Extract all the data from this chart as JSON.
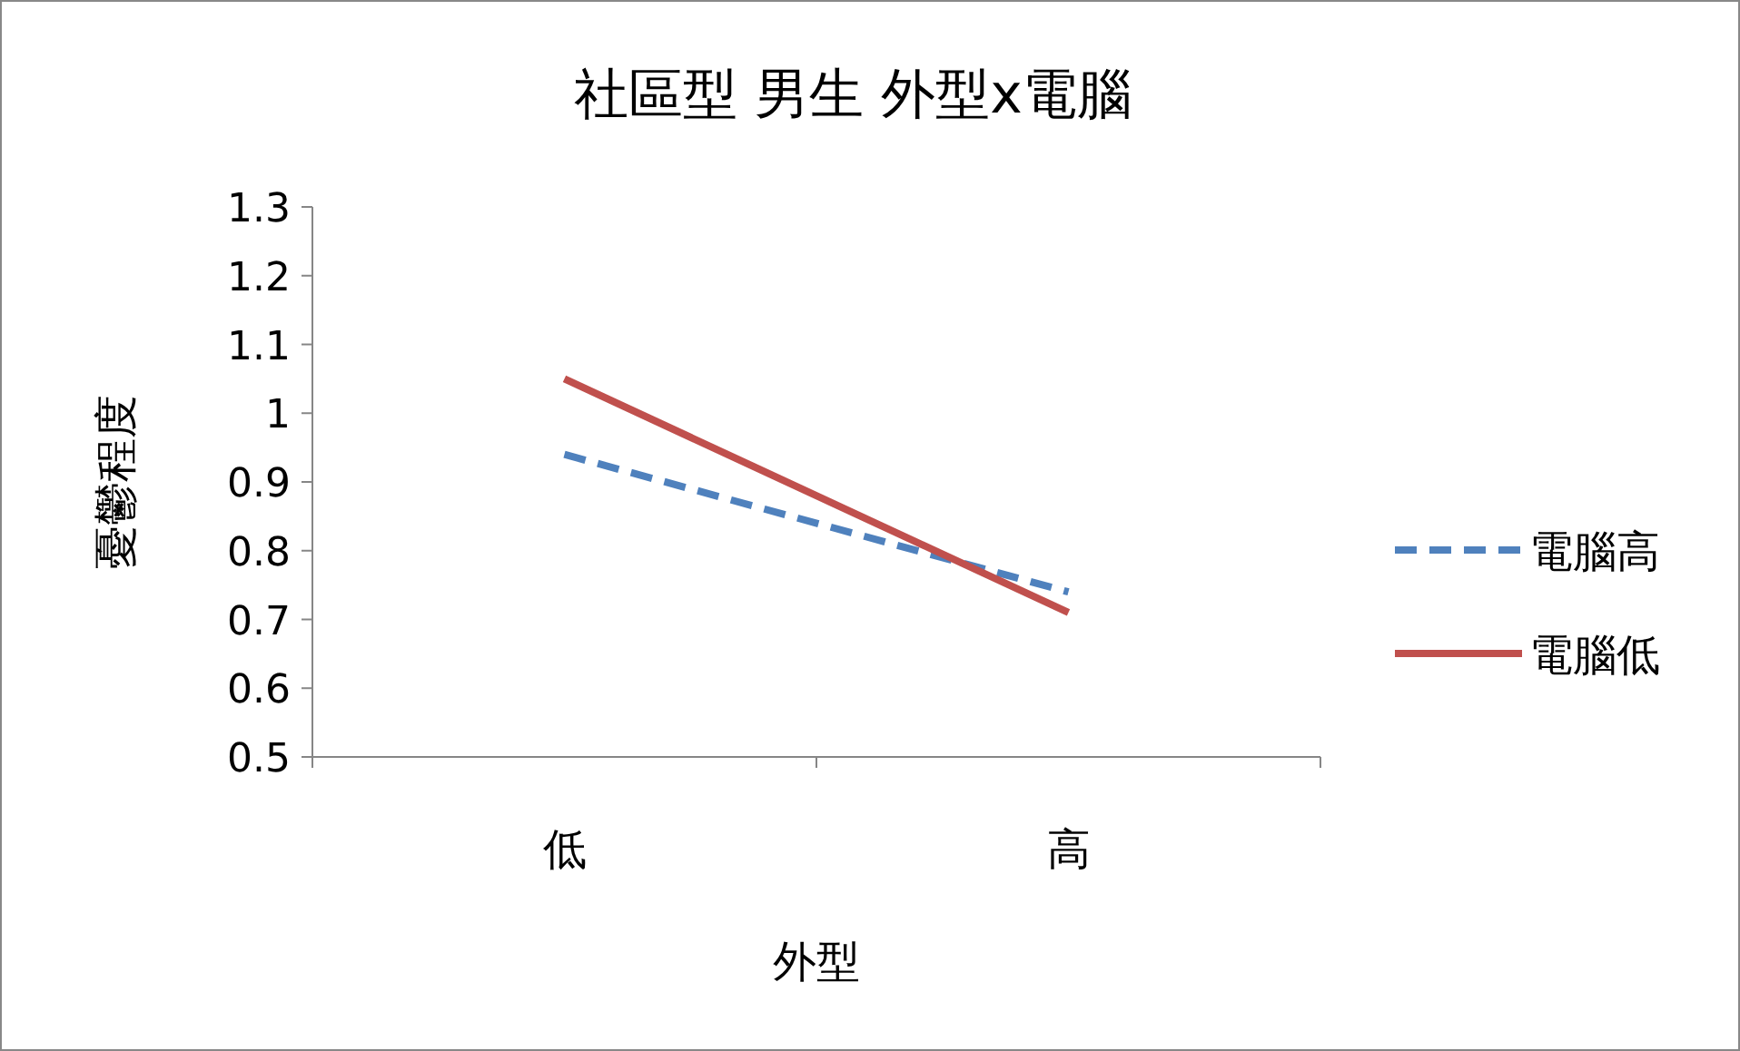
{
  "chart_data": {
    "type": "line",
    "title": "社區型 男生 外型x電腦",
    "xlabel": "外型",
    "ylabel": "憂鬱程度",
    "categories": [
      "低",
      "高"
    ],
    "series": [
      {
        "name": "電腦高",
        "color": "#4f81bd",
        "line_style": "dashed",
        "values": [
          0.94,
          0.74
        ]
      },
      {
        "name": "電腦低",
        "color": "#c0504d",
        "line_style": "solid",
        "values": [
          1.05,
          0.71
        ]
      }
    ],
    "ylim": [
      0.5,
      1.3
    ],
    "yticks": [
      0.5,
      0.6,
      0.7,
      0.8,
      0.9,
      1,
      1.1,
      1.2,
      1.3
    ],
    "grid": false,
    "legend": "right",
    "marker": "none"
  }
}
